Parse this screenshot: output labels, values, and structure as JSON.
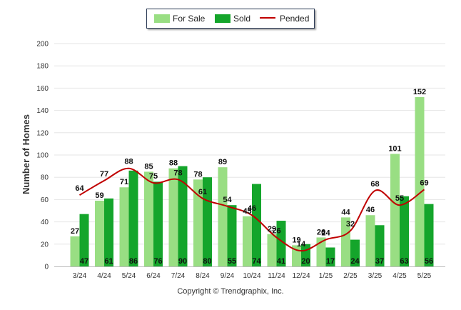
{
  "chart_data": {
    "type": "bar",
    "categories": [
      "3/24",
      "4/24",
      "5/24",
      "6/24",
      "7/24",
      "8/24",
      "9/24",
      "10/24",
      "11/24",
      "12/24",
      "1/25",
      "2/25",
      "3/25",
      "4/25",
      "5/25"
    ],
    "series": [
      {
        "name": "For Sale",
        "kind": "bar",
        "color": "#99de83",
        "values": [
          27,
          59,
          71,
          85,
          88,
          78,
          89,
          45,
          29,
          19,
          26,
          44,
          46,
          101,
          152
        ]
      },
      {
        "name": "Sold",
        "kind": "bar",
        "color": "#14a52b",
        "values": [
          47,
          61,
          86,
          76,
          90,
          80,
          55,
          74,
          41,
          20,
          17,
          24,
          37,
          63,
          56
        ]
      },
      {
        "name": "Pended",
        "kind": "line",
        "color": "#c00000",
        "values": [
          64,
          77,
          88,
          75,
          78,
          61,
          54,
          46,
          26,
          14,
          24,
          32,
          68,
          55,
          69
        ]
      }
    ],
    "ylabel": "Number of Homes",
    "xlabel": "",
    "ylim": [
      0,
      200
    ],
    "yticks": [
      0,
      20,
      40,
      60,
      80,
      100,
      120,
      140,
      160,
      180,
      200
    ],
    "grid": true,
    "legend_position": "top-center"
  },
  "footer": {
    "copyright": "Copyright © Trendgraphix, Inc."
  }
}
